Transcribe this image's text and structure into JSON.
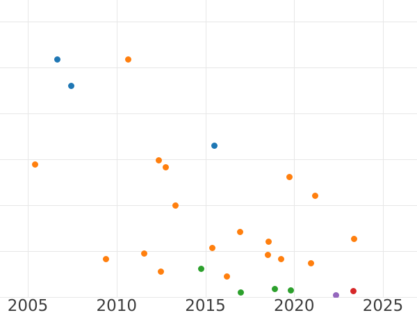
{
  "chart_data": {
    "type": "scatter",
    "title": "",
    "xlabel": "",
    "ylabel": "",
    "grid": true,
    "legend": "none",
    "x_tick_labels": [
      "2005",
      "2010",
      "2015",
      "2020",
      "2025"
    ],
    "x_tick_values": [
      2005,
      2010,
      2015,
      2020,
      2025
    ],
    "y_axis_labels_visible": false,
    "y_gridline_units": [
      0,
      1,
      2,
      3,
      4,
      5,
      6
    ],
    "x_range": [
      2003.4,
      2026.9
    ],
    "y_range": [
      0,
      6.47
    ],
    "series": [
      {
        "name": "series-blue",
        "color": "#1f77b4",
        "points": [
          [
            2006.68,
            5.18
          ],
          [
            2007.43,
            4.6
          ],
          [
            2015.49,
            3.29
          ]
        ]
      },
      {
        "name": "series-orange",
        "color": "#ff7f0e",
        "points": [
          [
            2005.43,
            2.88
          ],
          [
            2009.42,
            0.83
          ],
          [
            2010.64,
            5.17
          ],
          [
            2011.54,
            0.94
          ],
          [
            2012.36,
            2.98
          ],
          [
            2012.48,
            0.55
          ],
          [
            2012.75,
            2.82
          ],
          [
            2013.3,
            2.0
          ],
          [
            2015.41,
            1.07
          ],
          [
            2016.23,
            0.44
          ],
          [
            2016.94,
            1.41
          ],
          [
            2018.54,
            0.92
          ],
          [
            2018.58,
            1.2
          ],
          [
            2019.25,
            0.83
          ],
          [
            2019.72,
            2.62
          ],
          [
            2020.93,
            0.74
          ],
          [
            2021.2,
            2.21
          ],
          [
            2023.36,
            1.26
          ]
        ]
      },
      {
        "name": "series-green",
        "color": "#2ca02c",
        "points": [
          [
            2014.78,
            0.62
          ],
          [
            2016.98,
            0.1
          ],
          [
            2018.93,
            0.17
          ],
          [
            2019.83,
            0.14
          ]
        ]
      },
      {
        "name": "series-purple",
        "color": "#9467bd",
        "points": [
          [
            2022.34,
            0.04
          ]
        ]
      },
      {
        "name": "series-red",
        "color": "#d62728",
        "points": [
          [
            2023.32,
            0.13
          ]
        ]
      }
    ]
  }
}
